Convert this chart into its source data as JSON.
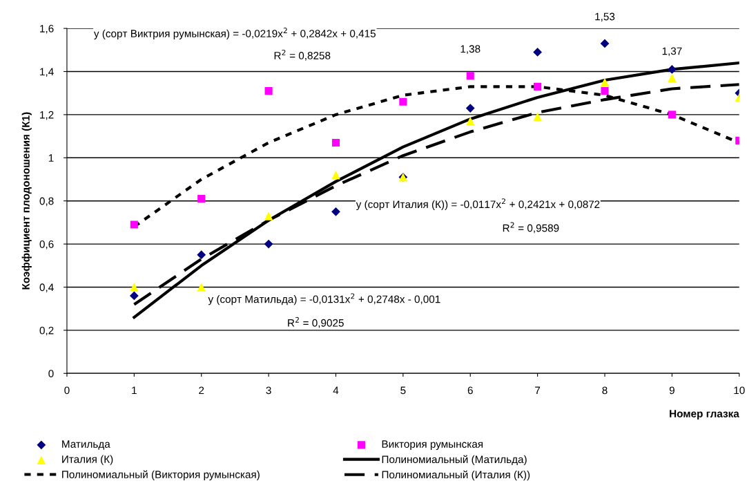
{
  "chart_data": {
    "type": "scatter",
    "ylabel": "Коэффициент плодоношения (К1)",
    "xlabel": "Номер глазка",
    "xlim": [
      0,
      10
    ],
    "xticks": [
      0,
      1,
      2,
      3,
      4,
      5,
      6,
      7,
      8,
      9,
      10
    ],
    "ylim": [
      0,
      1.6
    ],
    "yticks": [
      {
        "value": 0,
        "label": "0"
      },
      {
        "value": 0.2,
        "label": "0,2"
      },
      {
        "value": 0.4,
        "label": "0,4"
      },
      {
        "value": 0.6,
        "label": "0,6"
      },
      {
        "value": 0.8,
        "label": "0,8"
      },
      {
        "value": 1,
        "label": "1"
      },
      {
        "value": 1.2,
        "label": "1,2"
      },
      {
        "value": 1.4,
        "label": "1,4"
      },
      {
        "value": 1.6,
        "label": "1,6"
      }
    ],
    "grid": "y",
    "legend": "bottom",
    "series": [
      {
        "name": "Матильда",
        "marker": "diamond",
        "color": "#000080",
        "x": [
          1,
          2,
          3,
          4,
          5,
          6,
          7,
          8,
          9,
          10
        ],
        "values": [
          0.36,
          0.55,
          0.6,
          0.75,
          0.91,
          1.23,
          1.49,
          1.53,
          1.41,
          1.3
        ],
        "value_labels": [
          null,
          null,
          null,
          null,
          null,
          null,
          null,
          "1,53",
          null,
          null
        ]
      },
      {
        "name": "Виктория румынская",
        "marker": "square",
        "color": "#ff00ff",
        "x": [
          1,
          2,
          3,
          4,
          5,
          6,
          7,
          8,
          9,
          10
        ],
        "values": [
          0.69,
          0.81,
          1.31,
          1.07,
          1.26,
          1.38,
          1.33,
          1.31,
          1.2,
          1.08
        ],
        "value_labels": [
          null,
          null,
          null,
          null,
          null,
          "1,38",
          null,
          null,
          null,
          null
        ]
      },
      {
        "name": "Италия (К)",
        "marker": "triangle",
        "color": "#ffff00",
        "x": [
          1,
          2,
          3,
          4,
          5,
          6,
          7,
          8,
          9,
          10
        ],
        "values": [
          0.4,
          0.4,
          0.73,
          0.92,
          0.91,
          1.17,
          1.19,
          1.35,
          1.37,
          1.28
        ],
        "value_labels": [
          null,
          null,
          null,
          null,
          null,
          null,
          null,
          null,
          "1,37",
          null
        ]
      },
      {
        "name": "Полиномиальный (Матильда)",
        "type": "line",
        "line_style": "solid",
        "color": "#000000",
        "x": [
          1,
          2,
          3,
          4,
          5,
          6,
          7,
          8,
          9,
          10
        ],
        "values": [
          0.26,
          0.5,
          0.71,
          0.89,
          1.05,
          1.18,
          1.28,
          1.36,
          1.41,
          1.44
        ]
      },
      {
        "name": "Полиномиальный (Виктория румынская)",
        "type": "line",
        "line_style": "dotted",
        "color": "#000000",
        "x": [
          1,
          2,
          3,
          4,
          5,
          6,
          7,
          8,
          9,
          10
        ],
        "values": [
          0.68,
          0.9,
          1.07,
          1.2,
          1.29,
          1.33,
          1.33,
          1.29,
          1.2,
          1.07
        ]
      },
      {
        "name": "Полиномиальный (Италия (К))",
        "type": "line",
        "line_style": "dashed",
        "color": "#000000",
        "x": [
          1,
          2,
          3,
          4,
          5,
          6,
          7,
          8,
          9,
          10
        ],
        "values": [
          0.32,
          0.53,
          0.71,
          0.87,
          1.01,
          1.12,
          1.21,
          1.27,
          1.32,
          1.34
        ]
      }
    ],
    "annotations": [
      "y (сорт Виктрия румынская) = -0,0219x$^{2}$ + 0,2842x + 0,415",
      "R$^{2}$ = 0,8258",
      "y (сорт Италия (К)) = -0,0117x$^{2}$ + 0,2421x + 0,0872",
      "R$^{2}$ = 0,9589",
      "y (сорт Матильда) = -0,0131x$^{2}$ + 0,2748x - 0,001",
      "R$^{2}$ = 0,9025"
    ]
  }
}
